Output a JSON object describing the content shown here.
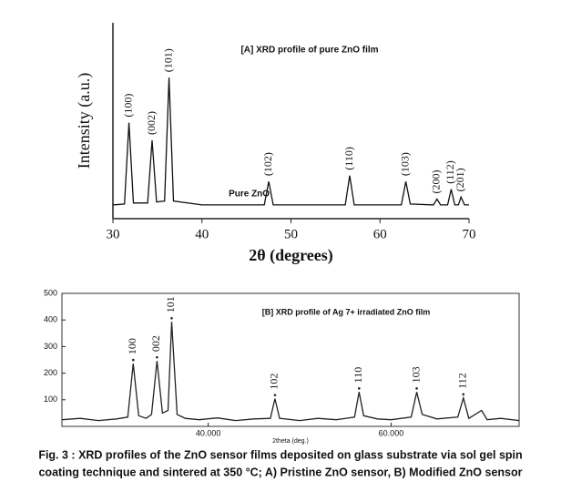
{
  "chart_data": [
    {
      "type": "line",
      "title": "[A]  XRD profile of pure ZnO film",
      "xlabel": "2θ (degrees)",
      "ylabel": "Intensity (a.u.)",
      "xlim": [
        30,
        70
      ],
      "xticks": [
        30,
        40,
        50,
        60,
        70
      ],
      "ylim": [
        0,
        100
      ],
      "x": [
        30,
        31.3,
        31.8,
        32.3,
        33.9,
        34.4,
        34.9,
        35.8,
        36.3,
        36.8,
        40,
        47.0,
        47.5,
        48.0,
        56.1,
        56.6,
        57.1,
        62.4,
        62.9,
        63.4,
        66.0,
        66.4,
        66.8,
        67.6,
        68.0,
        68.4,
        68.8,
        69.1,
        69.5,
        70
      ],
      "series": [
        {
          "name": "Pure ZnO",
          "color": "#111111",
          "values": [
            7,
            7.5,
            49,
            8,
            8,
            40,
            8.5,
            9,
            72,
            9,
            7,
            7,
            19,
            7,
            7,
            22,
            7,
            7,
            19,
            7.5,
            7,
            10,
            7,
            7,
            15,
            7,
            7,
            11,
            7,
            7
          ]
        }
      ],
      "annotations": [
        {
          "text": "(100)",
          "x": 31.8
        },
        {
          "text": "(002)",
          "x": 34.4
        },
        {
          "text": "(101)",
          "x": 36.3
        },
        {
          "text": "(102)",
          "x": 47.5
        },
        {
          "text": "(110)",
          "x": 56.6
        },
        {
          "text": "(103)",
          "x": 62.9
        },
        {
          "text": "(200)",
          "x": 66.4
        },
        {
          "text": "(112)",
          "x": 68.0
        },
        {
          "text": "(201)",
          "x": 69.1
        }
      ]
    },
    {
      "type": "line",
      "title": "[B] XRD profile of Ag 7+ irradiated ZnO film",
      "xlabel": "2theta (deg.)",
      "xlim": [
        24,
        74
      ],
      "xticks": [
        {
          "value": 40,
          "label": "40.000"
        },
        {
          "value": 60,
          "label": "60.000"
        }
      ],
      "ylim": [
        0,
        500
      ],
      "yticks": [
        100,
        200,
        300,
        400,
        500
      ],
      "x": [
        24,
        26,
        28,
        30,
        31.2,
        31.8,
        32.4,
        33.2,
        33.8,
        34.4,
        35.0,
        35.6,
        36.0,
        36.6,
        37.5,
        39,
        41,
        43,
        45,
        46.8,
        47.3,
        47.8,
        50,
        52,
        54,
        56,
        56.5,
        57.0,
        58.5,
        60,
        62.2,
        62.8,
        63.4,
        65,
        67.3,
        67.9,
        68.5,
        69.9,
        70.5,
        72,
        74
      ],
      "series": [
        {
          "color": "#222222",
          "values": [
            25,
            30,
            22,
            28,
            35,
            236,
            40,
            30,
            45,
            246,
            50,
            60,
            393,
            45,
            30,
            25,
            32,
            22,
            28,
            30,
            104,
            30,
            22,
            30,
            25,
            35,
            129,
            40,
            28,
            25,
            35,
            129,
            45,
            28,
            35,
            107,
            30,
            60,
            25,
            30,
            22
          ]
        }
      ],
      "annotations": [
        {
          "text": "100",
          "x": 31.8
        },
        {
          "text": "002",
          "x": 34.4
        },
        {
          "text": "101",
          "x": 36.0
        },
        {
          "text": "102",
          "x": 47.3
        },
        {
          "text": "110",
          "x": 56.5
        },
        {
          "text": "103",
          "x": 62.8
        },
        {
          "text": "112",
          "x": 67.9
        }
      ]
    }
  ],
  "caption": {
    "lines": [
      "Fig. 3 : XRD profiles of the ZnO sensor films deposited on  glass substrate via sol gel spin",
      "coating  technique and sintered at 350 °C; A) Pristine ZnO sensor, B) Modified ZnO sensor"
    ]
  }
}
